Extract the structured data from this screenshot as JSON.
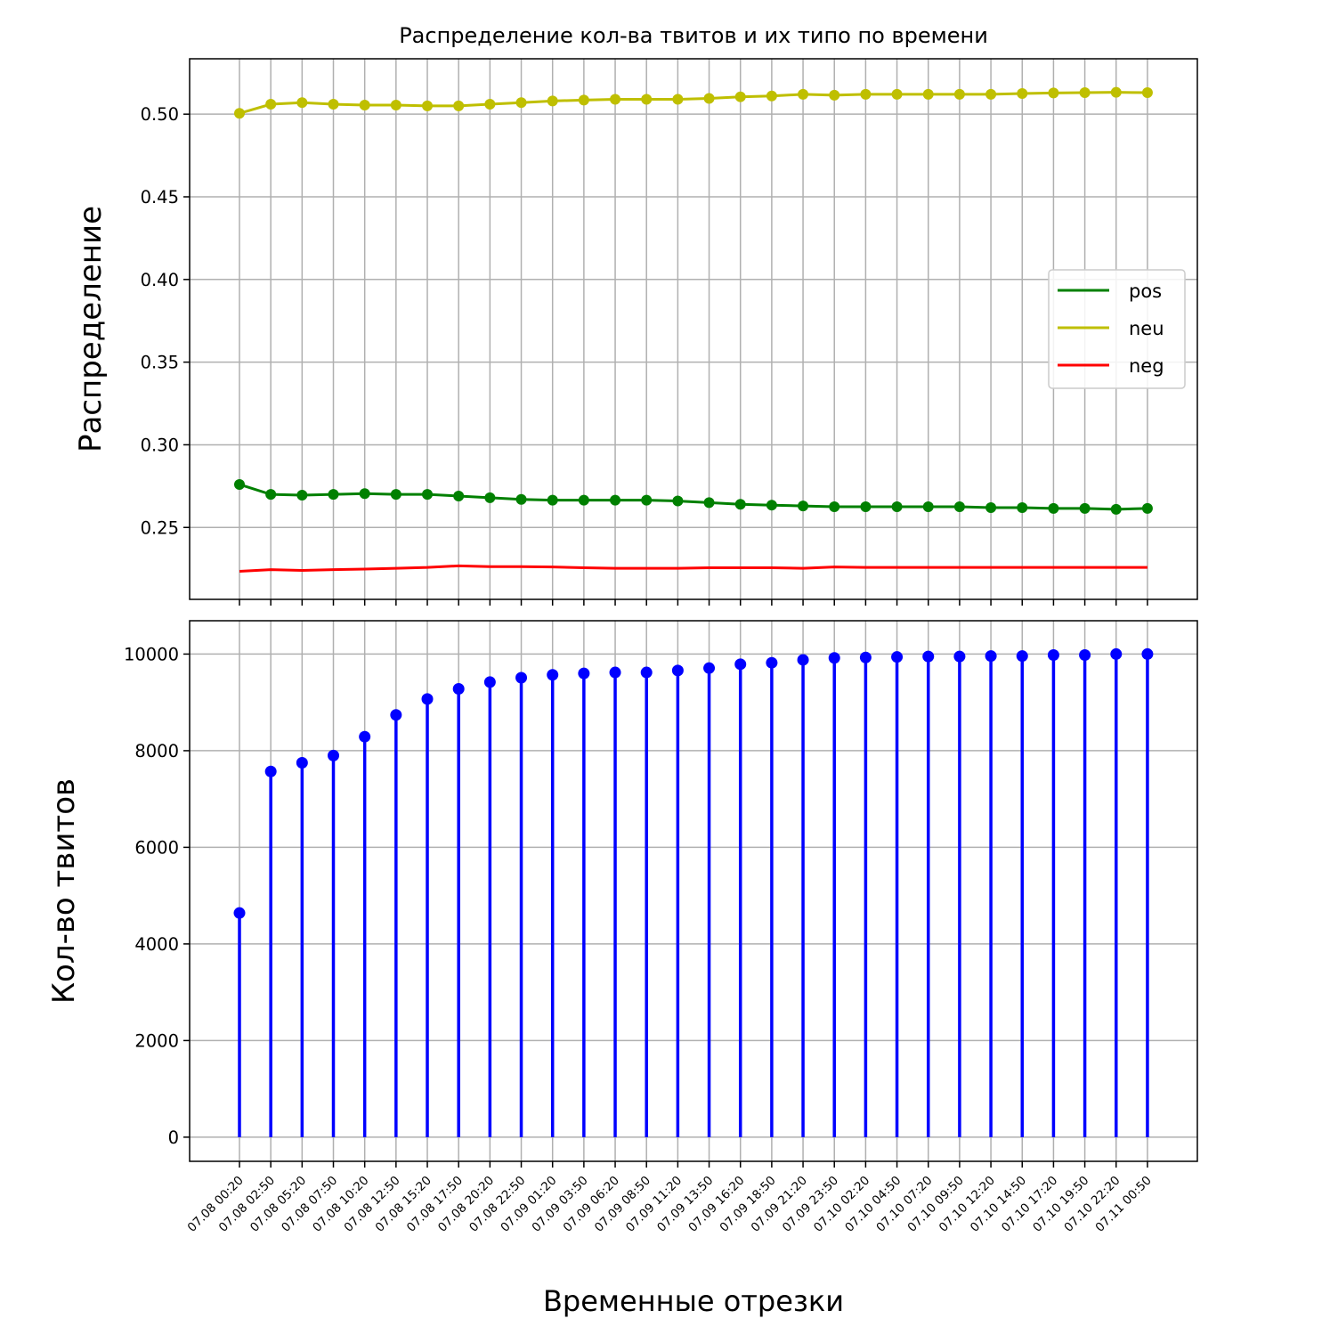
{
  "chart_data": [
    {
      "type": "line",
      "title": "Распределение кол-ва твитов и их типо по времени",
      "ylabel": "Распределение",
      "xlabel": "",
      "ylim": [
        0.2065,
        0.5335
      ],
      "yticks": [
        0.25,
        0.3,
        0.35,
        0.4,
        0.45,
        0.5
      ],
      "ytick_labels": [
        "0.25",
        "0.30",
        "0.35",
        "0.40",
        "0.45",
        "0.50"
      ],
      "grid": true,
      "legend_position": "center-right",
      "categories": [
        "07.08 00:20",
        "07.08 02:50",
        "07.08 05:20",
        "07.08 07:50",
        "07.08 10:20",
        "07.08 12:50",
        "07.08 15:20",
        "07.08 17:50",
        "07.08 20:20",
        "07.08 22:50",
        "07.09 01:20",
        "07.09 03:50",
        "07.09 06:20",
        "07.09 08:50",
        "07.09 11:20",
        "07.09 13:50",
        "07.09 16:20",
        "07.09 18:50",
        "07.09 21:20",
        "07.09 23:50",
        "07.10 02:20",
        "07.10 04:50",
        "07.10 07:20",
        "07.10 09:50",
        "07.10 12:20",
        "07.10 14:50",
        "07.10 17:20",
        "07.10 19:50",
        "07.10 22:20",
        "07.11 00:50"
      ],
      "series": [
        {
          "name": "pos",
          "color": "#008000",
          "markers": true,
          "values": [
            0.276,
            0.27,
            0.2695,
            0.27,
            0.2705,
            0.27,
            0.27,
            0.269,
            0.268,
            0.267,
            0.2665,
            0.2665,
            0.2665,
            0.2665,
            0.266,
            0.265,
            0.264,
            0.2635,
            0.263,
            0.2625,
            0.2625,
            0.2625,
            0.2625,
            0.2625,
            0.262,
            0.262,
            0.2615,
            0.2615,
            0.261,
            0.2615
          ]
        },
        {
          "name": "neu",
          "color": "#bfbf00",
          "markers": true,
          "values": [
            0.5005,
            0.506,
            0.507,
            0.506,
            0.5055,
            0.5055,
            0.505,
            0.505,
            0.506,
            0.507,
            0.508,
            0.5085,
            0.509,
            0.509,
            0.509,
            0.5095,
            0.5105,
            0.511,
            0.512,
            0.5115,
            0.512,
            0.512,
            0.512,
            0.512,
            0.512,
            0.5125,
            0.5128,
            0.513,
            0.5132,
            0.513
          ]
        },
        {
          "name": "neg",
          "color": "#ff0000",
          "markers": false,
          "values": [
            0.2235,
            0.2245,
            0.224,
            0.2245,
            0.2248,
            0.2253,
            0.2258,
            0.2268,
            0.2263,
            0.2263,
            0.2261,
            0.2256,
            0.2253,
            0.2253,
            0.2253,
            0.2256,
            0.2256,
            0.2256,
            0.2253,
            0.2261,
            0.2258,
            0.2258,
            0.2258,
            0.2258,
            0.2258,
            0.2258,
            0.2258,
            0.2258,
            0.2258,
            0.2258
          ]
        }
      ]
    },
    {
      "type": "stem",
      "ylabel": "Кол-во твитов",
      "xlabel": "Временные отрезки",
      "ylim": [
        -500,
        10690
      ],
      "yticks": [
        0,
        2000,
        4000,
        6000,
        8000,
        10000
      ],
      "ytick_labels": [
        "0",
        "2000",
        "4000",
        "6000",
        "8000",
        "10000"
      ],
      "grid": true,
      "color": "#0000ff",
      "categories": [
        "07.08 00:20",
        "07.08 02:50",
        "07.08 05:20",
        "07.08 07:50",
        "07.08 10:20",
        "07.08 12:50",
        "07.08 15:20",
        "07.08 17:50",
        "07.08 20:20",
        "07.08 22:50",
        "07.09 01:20",
        "07.09 03:50",
        "07.09 06:20",
        "07.09 08:50",
        "07.09 11:20",
        "07.09 13:50",
        "07.09 16:20",
        "07.09 18:50",
        "07.09 21:20",
        "07.09 23:50",
        "07.10 02:20",
        "07.10 04:50",
        "07.10 07:20",
        "07.10 09:50",
        "07.10 12:20",
        "07.10 14:50",
        "07.10 17:20",
        "07.10 19:50",
        "07.10 22:20",
        "07.11 00:50"
      ],
      "values": [
        4640,
        7570,
        7750,
        7900,
        8290,
        8740,
        9070,
        9280,
        9420,
        9510,
        9570,
        9600,
        9620,
        9620,
        9660,
        9710,
        9790,
        9820,
        9880,
        9920,
        9930,
        9940,
        9950,
        9950,
        9960,
        9960,
        9980,
        9980,
        10000,
        10000
      ]
    }
  ]
}
